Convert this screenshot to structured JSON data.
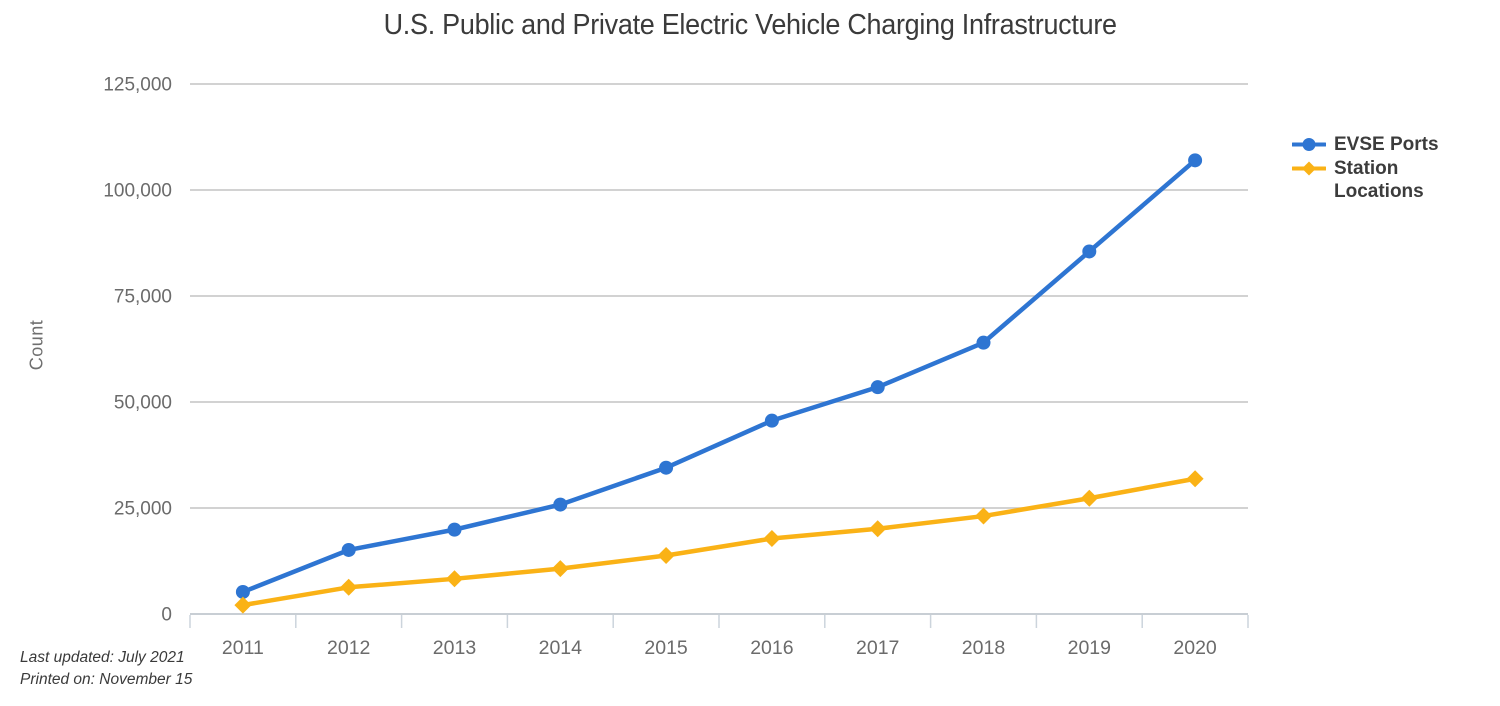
{
  "chart": {
    "footer": {
      "last_updated": "Last updated: July 2021",
      "printed_on": "Printed on: November 15"
    },
    "colors": {
      "grid": "#c4c4c4",
      "axis_line": "#c8ced4",
      "tick": "#ccd4dc",
      "axis_label": "#6b6b6b",
      "title_text": "#3b3b3b",
      "legend_text": "#3c3c3c"
    }
  },
  "chart_data": {
    "type": "line",
    "title": "U.S. Public and Private Electric Vehicle Charging Infrastructure",
    "xlabel": "",
    "ylabel": "Count",
    "categories": [
      "2011",
      "2012",
      "2013",
      "2014",
      "2015",
      "2016",
      "2017",
      "2018",
      "2019",
      "2020"
    ],
    "series": [
      {
        "name": "EVSE Ports",
        "color": "#2E75D2",
        "marker": "circle",
        "values": [
          5200,
          15100,
          19900,
          25800,
          34500,
          45600,
          53500,
          64000,
          85500,
          107000
        ]
      },
      {
        "name": "Station Locations",
        "color": "#FAB216",
        "marker": "diamond",
        "values": [
          2100,
          6300,
          8300,
          10700,
          13800,
          17800,
          20100,
          23100,
          27300,
          31900
        ]
      }
    ],
    "ylim": [
      0,
      125000
    ],
    "ytick_step": 25000,
    "grid": "horizontal",
    "legend_position": "right"
  }
}
